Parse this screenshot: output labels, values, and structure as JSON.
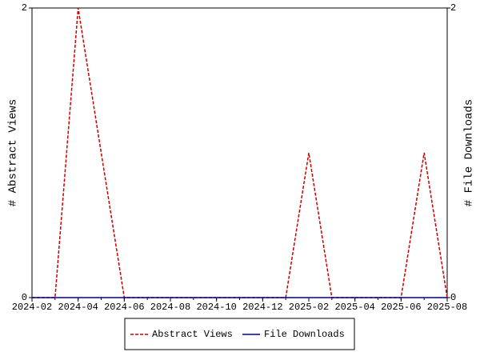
{
  "chart_data": {
    "type": "line",
    "x": [
      "2024-02",
      "2024-03",
      "2024-04",
      "2024-05",
      "2024-06",
      "2024-07",
      "2024-08",
      "2024-09",
      "2024-10",
      "2024-11",
      "2024-12",
      "2025-01",
      "2025-02",
      "2025-03",
      "2025-04",
      "2025-05",
      "2025-06",
      "2025-07",
      "2025-08"
    ],
    "xticks": [
      "2024-02",
      "2024-04",
      "2024-06",
      "2024-08",
      "2024-10",
      "2024-12",
      "2025-02",
      "2025-04",
      "2025-06",
      "2025-08"
    ],
    "series": [
      {
        "name": "Abstract Views",
        "color": "#cc0000",
        "line_style": "dashed",
        "axis": "y",
        "values": [
          0,
          0,
          2,
          1,
          0,
          0,
          0,
          0,
          0,
          0,
          0,
          0,
          1,
          0,
          0,
          0,
          0,
          1,
          0
        ]
      },
      {
        "name": "File Downloads",
        "color": "#000099",
        "line_style": "solid",
        "axis": "y2",
        "values": [
          0,
          0,
          0,
          0,
          0,
          0,
          0,
          0,
          0,
          0,
          0,
          0,
          0,
          0,
          0,
          0,
          0,
          0,
          0
        ]
      }
    ],
    "ylabel": "# Abstract Views",
    "y2label": "# File Downloads",
    "ylim": [
      0,
      2
    ],
    "yticks": [
      0,
      2
    ],
    "y2lim": [
      0,
      2
    ],
    "y2ticks": [
      0,
      2
    ],
    "grid": false,
    "legend": "bottom"
  }
}
